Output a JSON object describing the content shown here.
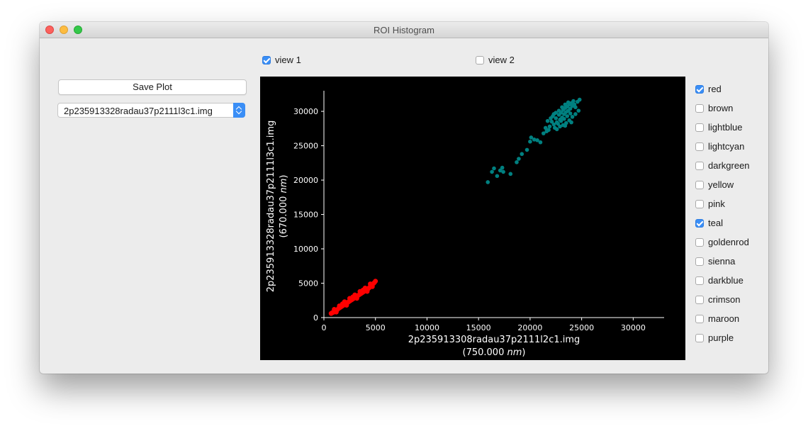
{
  "window": {
    "title": "ROI Histogram"
  },
  "views": [
    {
      "label": "view 1",
      "checked": true
    },
    {
      "label": "view 2",
      "checked": false
    }
  ],
  "save_button": {
    "label": "Save Plot"
  },
  "image_select": {
    "value": "2p235913328radau37p2111l3c1.img"
  },
  "color_list": [
    {
      "label": "red",
      "checked": true
    },
    {
      "label": "brown",
      "checked": false
    },
    {
      "label": "lightblue",
      "checked": false
    },
    {
      "label": "lightcyan",
      "checked": false
    },
    {
      "label": "darkgreen",
      "checked": false
    },
    {
      "label": "yellow",
      "checked": false
    },
    {
      "label": "pink",
      "checked": false
    },
    {
      "label": "teal",
      "checked": true
    },
    {
      "label": "goldenrod",
      "checked": false
    },
    {
      "label": "sienna",
      "checked": false
    },
    {
      "label": "darkblue",
      "checked": false
    },
    {
      "label": "crimson",
      "checked": false
    },
    {
      "label": "maroon",
      "checked": false
    },
    {
      "label": "purple",
      "checked": false
    }
  ],
  "chart_data": {
    "type": "scatter",
    "xlabel": "2p235913308radau37p2111l2c1.img",
    "xlabel_unit_prefix": "(750.000 ",
    "xlabel_unit": "nm",
    "xlabel_unit_suffix": ")",
    "ylabel": "2p235913328radau37p2111l3c1.img",
    "ylabel_unit_prefix": "(670.000 ",
    "ylabel_unit": "nm",
    "ylabel_unit_suffix": ")",
    "xlim": [
      0,
      33000
    ],
    "ylim": [
      0,
      33000
    ],
    "xticks": [
      0,
      5000,
      10000,
      15000,
      20000,
      25000,
      30000
    ],
    "yticks": [
      0,
      5000,
      10000,
      15000,
      20000,
      25000,
      30000
    ],
    "background": "#000000",
    "axis_color": "#ffffff",
    "grid": false,
    "series": [
      {
        "color": "#ff0000",
        "points": [
          [
            700,
            600
          ],
          [
            800,
            700
          ],
          [
            900,
            750
          ],
          [
            1000,
            850
          ],
          [
            1100,
            900
          ],
          [
            1200,
            1000
          ],
          [
            1300,
            1150
          ],
          [
            1400,
            1300
          ],
          [
            1500,
            1400
          ],
          [
            1600,
            1500
          ],
          [
            1700,
            1600
          ],
          [
            1800,
            1700
          ],
          [
            1900,
            1800
          ],
          [
            2000,
            1900
          ],
          [
            2100,
            2000
          ],
          [
            2200,
            2100
          ],
          [
            2300,
            2200
          ],
          [
            2400,
            2300
          ],
          [
            2500,
            2400
          ],
          [
            2600,
            2500
          ],
          [
            2700,
            2600
          ],
          [
            2800,
            2700
          ],
          [
            2900,
            2800
          ],
          [
            3000,
            2900
          ],
          [
            3100,
            3000
          ],
          [
            3200,
            3100
          ],
          [
            3300,
            3200
          ],
          [
            3400,
            3300
          ],
          [
            3500,
            3400
          ],
          [
            3600,
            3500
          ],
          [
            3700,
            3600
          ],
          [
            3800,
            3700
          ],
          [
            3900,
            3800
          ],
          [
            4000,
            3900
          ],
          [
            4100,
            4000
          ],
          [
            4200,
            4100
          ],
          [
            4300,
            4200
          ],
          [
            4400,
            4350
          ],
          [
            4500,
            4500
          ],
          [
            4600,
            4650
          ],
          [
            4700,
            4800
          ],
          [
            4800,
            4950
          ],
          [
            4900,
            5100
          ],
          [
            5000,
            5300
          ],
          [
            1000,
            1200
          ],
          [
            1500,
            1700
          ],
          [
            2000,
            2300
          ],
          [
            2500,
            2800
          ],
          [
            3000,
            3300
          ],
          [
            3500,
            3800
          ],
          [
            4000,
            4300
          ],
          [
            4500,
            4900
          ],
          [
            1200,
            800
          ],
          [
            2200,
            1800
          ],
          [
            3200,
            2800
          ],
          [
            4200,
            3800
          ],
          [
            4700,
            4500
          ],
          [
            3800,
            4000
          ],
          [
            2800,
            3000
          ],
          [
            1800,
            2000
          ]
        ]
      },
      {
        "color": "#008080",
        "points": [
          [
            15900,
            19700
          ],
          [
            16300,
            21200
          ],
          [
            16500,
            21700
          ],
          [
            16800,
            20600
          ],
          [
            17100,
            21400
          ],
          [
            17300,
            21800
          ],
          [
            17400,
            21200
          ],
          [
            18100,
            20900
          ],
          [
            18700,
            22600
          ],
          [
            18900,
            23100
          ],
          [
            19200,
            23800
          ],
          [
            19700,
            24400
          ],
          [
            20000,
            25600
          ],
          [
            20100,
            26200
          ],
          [
            20400,
            25900
          ],
          [
            20700,
            25800
          ],
          [
            21000,
            25500
          ],
          [
            21300,
            26800
          ],
          [
            21600,
            27100
          ],
          [
            21900,
            27800
          ],
          [
            22100,
            28500
          ],
          [
            22300,
            28100
          ],
          [
            22500,
            29000
          ],
          [
            22600,
            28400
          ],
          [
            22800,
            29500
          ],
          [
            22900,
            28800
          ],
          [
            23000,
            29800
          ],
          [
            23100,
            29100
          ],
          [
            23200,
            30200
          ],
          [
            23300,
            29600
          ],
          [
            23400,
            30500
          ],
          [
            23500,
            29900
          ],
          [
            23600,
            30700
          ],
          [
            23700,
            30100
          ],
          [
            23800,
            31000
          ],
          [
            23900,
            30400
          ],
          [
            24000,
            31200
          ],
          [
            24100,
            30800
          ],
          [
            24200,
            31500
          ],
          [
            24300,
            31000
          ],
          [
            22400,
            27600
          ],
          [
            22700,
            28200
          ],
          [
            23000,
            28600
          ],
          [
            23300,
            28900
          ],
          [
            23600,
            29300
          ],
          [
            23900,
            29700
          ],
          [
            22200,
            29300
          ],
          [
            22500,
            29800
          ],
          [
            22800,
            30100
          ],
          [
            23100,
            30600
          ],
          [
            23400,
            31000
          ],
          [
            23700,
            31300
          ],
          [
            24400,
            30600
          ],
          [
            24600,
            31400
          ],
          [
            24800,
            31700
          ],
          [
            21700,
            28600
          ],
          [
            22000,
            29000
          ],
          [
            22300,
            29600
          ],
          [
            23200,
            28000
          ],
          [
            23500,
            28300
          ],
          [
            23800,
            28700
          ],
          [
            24100,
            29200
          ],
          [
            24400,
            29600
          ],
          [
            24700,
            30100
          ],
          [
            21500,
            27600
          ],
          [
            21800,
            27300
          ],
          [
            22600,
            27400
          ],
          [
            22900,
            27800
          ],
          [
            23400,
            27900
          ],
          [
            24000,
            28400
          ]
        ]
      }
    ]
  }
}
